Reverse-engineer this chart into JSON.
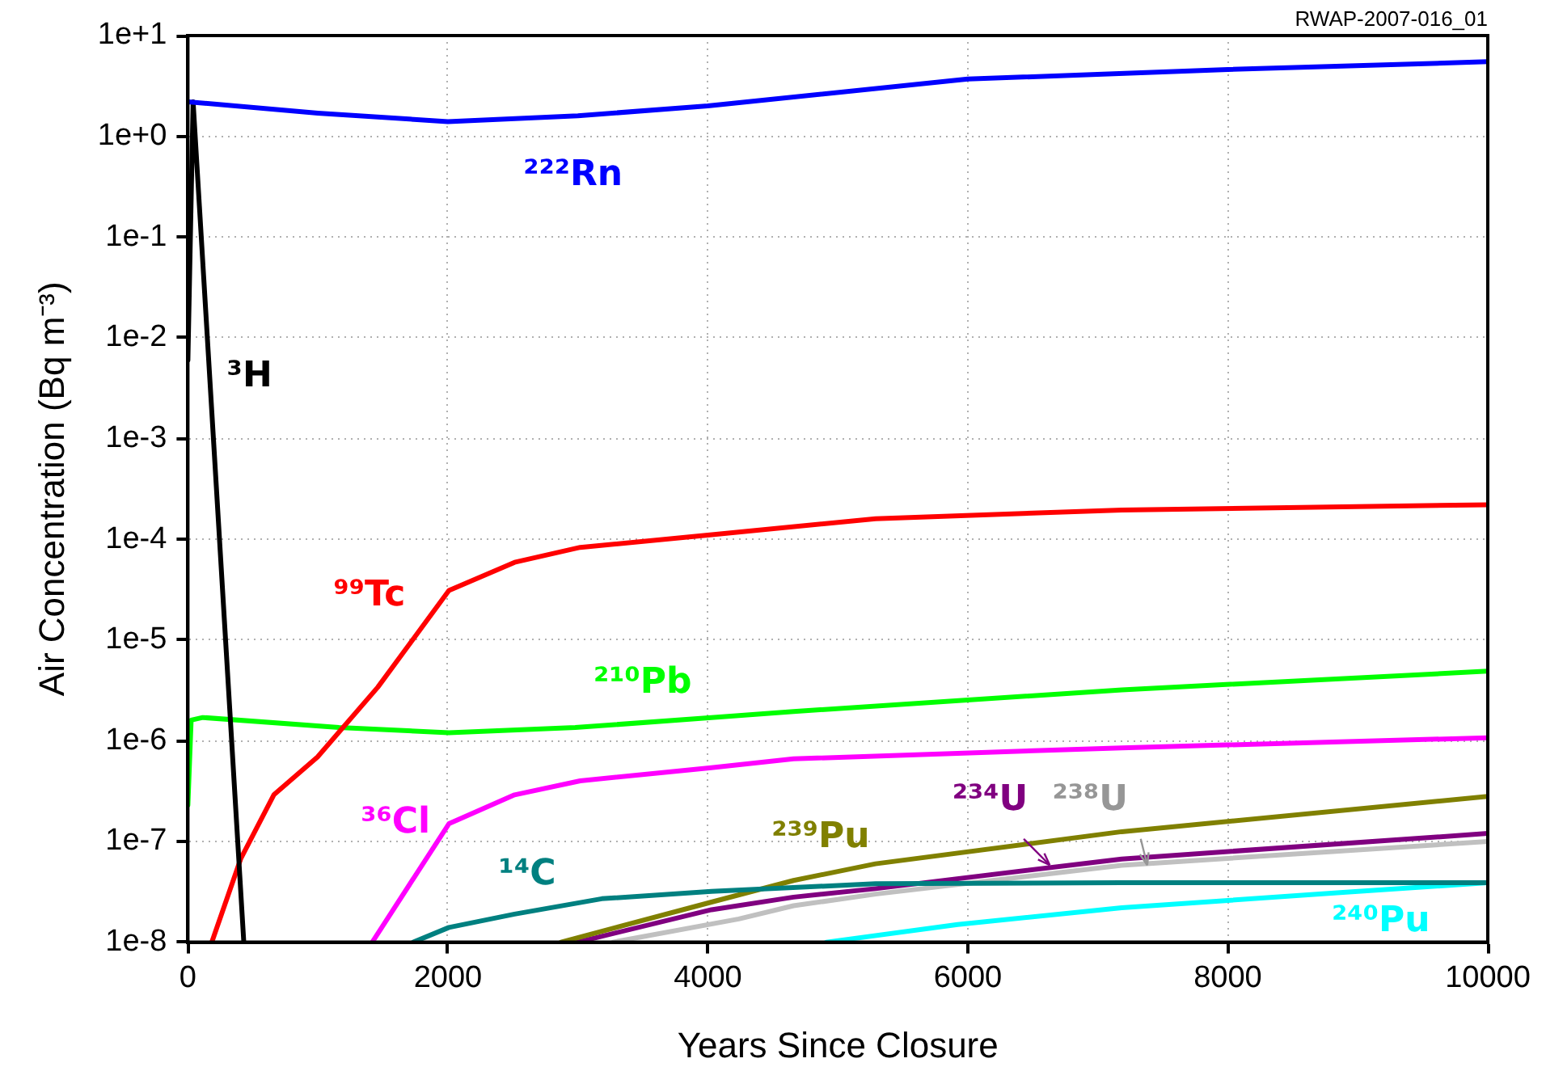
{
  "chart_data": {
    "type": "line",
    "xlabel": "Years Since Closure",
    "ylabel": "Air Concentration (Bq m⁻³)",
    "annotations": [
      "RWAP-2007-016_01"
    ],
    "log": "y",
    "grid": true,
    "legend": false,
    "marker": "none",
    "line_style": "solid",
    "xlim": [
      0,
      10000
    ],
    "xticks": [
      0,
      2000,
      4000,
      6000,
      8000,
      10000
    ],
    "ylim": [
      1e-08,
      10
    ],
    "yticks": [
      {
        "value": 10,
        "label": "1e+1"
      },
      {
        "value": 1,
        "label": "1e+0"
      },
      {
        "value": 0.1,
        "label": "1e-1"
      },
      {
        "value": 0.01,
        "label": "1e-2"
      },
      {
        "value": 0.001,
        "label": "1e-3"
      },
      {
        "value": 0.0001,
        "label": "1e-4"
      },
      {
        "value": 1e-05,
        "label": "1e-5"
      },
      {
        "value": 1e-06,
        "label": "1e-6"
      },
      {
        "value": 1e-07,
        "label": "1e-7"
      },
      {
        "value": 1e-08,
        "label": "1e-8"
      }
    ],
    "series": [
      {
        "name": "²²²Rn",
        "color": "#0000ff",
        "x": [
          0,
          1000,
          2000,
          3000,
          4000,
          6000,
          8000,
          10000
        ],
        "values": [
          2.2,
          1.7,
          1.4,
          1.6,
          2.0,
          3.7,
          4.6,
          5.5
        ]
      },
      {
        "name": "³H",
        "color": "#000000",
        "x": [
          0,
          40,
          430
        ],
        "values": [
          0.006,
          2.2,
          1e-08
        ]
      },
      {
        "name": "⁹⁹Tc",
        "color": "#ff0000",
        "x": [
          184,
          408,
          661,
          997,
          1461,
          2008,
          2513,
          3018,
          4000,
          5290,
          7184,
          10000
        ],
        "values": [
          1e-08,
          6.8e-08,
          2.9e-07,
          6.9e-07,
          3.4e-06,
          3.1e-05,
          5.9e-05,
          8.3e-05,
          0.00011,
          0.00016,
          0.000195,
          0.00022
        ]
      },
      {
        "name": "²¹⁰Pb",
        "color": "#00ff00",
        "x": [
          0,
          25,
          114,
          1162,
          2008,
          2980,
          4028,
          4659,
          7184,
          10000
        ],
        "values": [
          2.3e-07,
          1.6e-06,
          1.7e-06,
          1.35e-06,
          1.2e-06,
          1.35e-06,
          1.7e-06,
          1.95e-06,
          3.2e-06,
          4.9e-06
        ]
      },
      {
        "name": "³⁶Cl",
        "color": "#ff00ff",
        "x": [
          1418,
          2008,
          2513,
          3018,
          4028,
          4659,
          7184,
          10000
        ],
        "values": [
          1e-08,
          1.5e-07,
          2.9e-07,
          4e-07,
          5.4e-07,
          6.6e-07,
          8.5e-07,
          1.07e-06
        ]
      },
      {
        "name": "¹⁴C",
        "color": "#008080",
        "x": [
          1734,
          2008,
          2513,
          3184,
          4028,
          5290,
          7184,
          10000
        ],
        "values": [
          1e-08,
          1.4e-08,
          1.9e-08,
          2.7e-08,
          3.2e-08,
          3.8e-08,
          3.9e-08,
          3.9e-08
        ]
      },
      {
        "name": "²³⁹Pu",
        "color": "#808000",
        "x": [
          2870,
          4028,
          4659,
          5290,
          7184,
          10000
        ],
        "values": [
          1e-08,
          2.5e-08,
          4.1e-08,
          6e-08,
          1.25e-07,
          2.8e-07
        ]
      },
      {
        "name": "²³⁴U",
        "color": "#800080",
        "x": [
          2997,
          4028,
          4659,
          5290,
          7184,
          10000
        ],
        "values": [
          1e-08,
          2.1e-08,
          2.8e-08,
          3.4e-08,
          6.7e-08,
          1.2e-07
        ]
      },
      {
        "name": "²³⁸U",
        "color": "#c0c0c0",
        "x": [
          3270,
          4238,
          4659,
          5290,
          7184,
          10000
        ],
        "values": [
          1e-08,
          1.7e-08,
          2.3e-08,
          3e-08,
          5.8e-08,
          1e-07
        ]
      },
      {
        "name": "²⁴⁰Pu",
        "color": "#00ffff",
        "x": [
          4912,
          5922,
          7184,
          8864,
          10000
        ],
        "values": [
          1e-08,
          1.5e-08,
          2.2e-08,
          3.1e-08,
          3.9e-08
        ]
      }
    ]
  }
}
